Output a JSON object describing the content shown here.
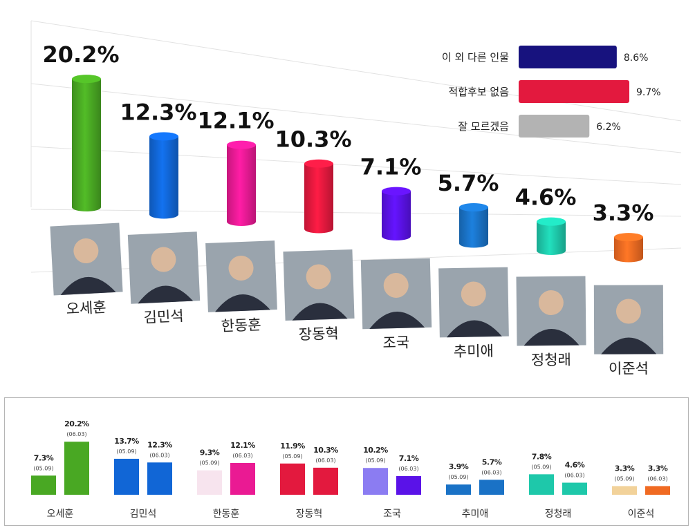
{
  "chart_data": [
    {
      "type": "bar",
      "categories": [
        "오세훈",
        "김민석",
        "한동훈",
        "장동혁",
        "조국",
        "추미애",
        "정청래",
        "이준석"
      ],
      "values": [
        20.2,
        12.3,
        12.1,
        10.3,
        7.1,
        5.7,
        4.6,
        3.3
      ],
      "value_labels": [
        "20.2%",
        "12.3%",
        "12.1%",
        "10.3%",
        "7.1%",
        "5.7%",
        "4.6%",
        "3.3%"
      ],
      "colors": [
        "#49a823",
        "#1166d6",
        "#ea1a93",
        "#e3193e",
        "#5a12e8",
        "#1a72c6",
        "#1ec8aa",
        "#f06a22"
      ],
      "extra": {
        "categories": [
          "이 외 다른 인물",
          "적합후보 없음",
          "잘 모르겠음"
        ],
        "values": [
          8.6,
          9.7,
          6.2
        ],
        "value_labels": [
          "8.6%",
          "9.7%",
          "6.2%"
        ],
        "colors": [
          "#17127e",
          "#e3193e",
          "#b3b3b3"
        ]
      }
    },
    {
      "type": "bar",
      "categories": [
        "오세훈",
        "김민석",
        "한동훈",
        "장동혁",
        "조국",
        "추미애",
        "정청래",
        "이준석"
      ],
      "series": [
        {
          "period": "(05.09)",
          "values": [
            7.3,
            13.7,
            9.3,
            11.9,
            10.2,
            3.9,
            7.8,
            3.3
          ],
          "value_labels": [
            "7.3%",
            "13.7%",
            "9.3%",
            "11.9%",
            "10.2%",
            "3.9%",
            "7.8%",
            "3.3%"
          ],
          "colors": [
            "#49a823",
            "#1166d6",
            "#f7e4ee",
            "#e3193e",
            "#8b7cf2",
            "#1a72c6",
            "#1ec8aa",
            "#f2d29a"
          ]
        },
        {
          "period": "(06.03)",
          "values": [
            20.2,
            12.3,
            12.1,
            10.3,
            7.1,
            5.7,
            4.6,
            3.3
          ],
          "value_labels": [
            "20.2%",
            "12.3%",
            "12.1%",
            "10.3%",
            "7.1%",
            "5.7%",
            "4.6%",
            "3.3%"
          ],
          "colors": [
            "#49a823",
            "#1166d6",
            "#ea1a93",
            "#e3193e",
            "#5a12e8",
            "#1a72c6",
            "#1ec8aa",
            "#f06a22"
          ]
        }
      ]
    }
  ]
}
